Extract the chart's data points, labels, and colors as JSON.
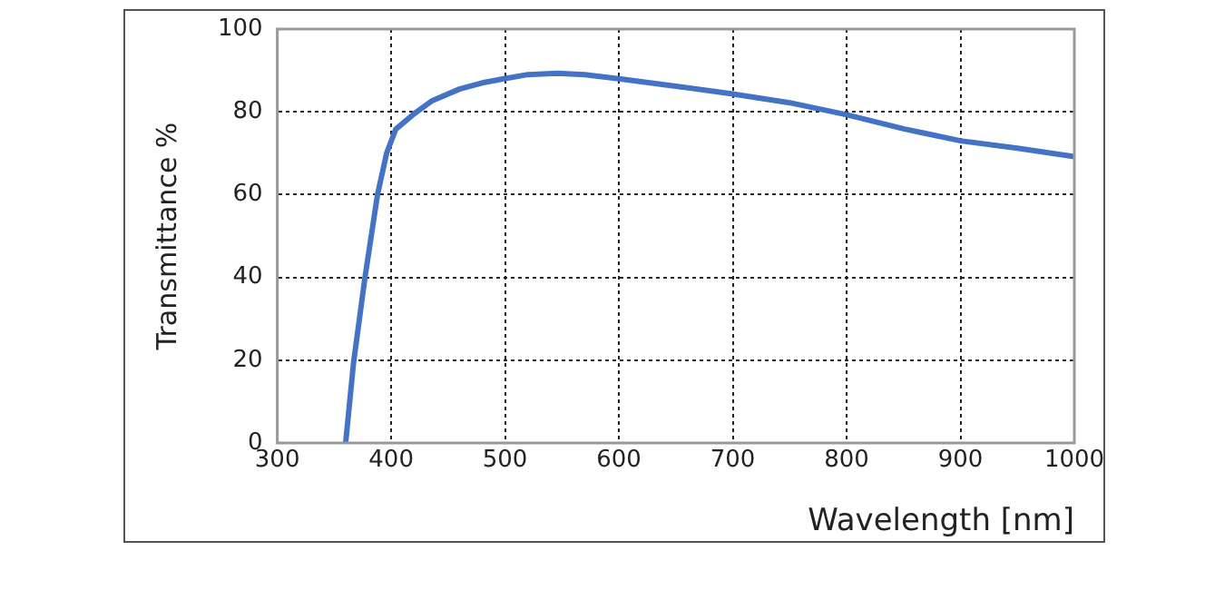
{
  "chart_data": {
    "type": "line",
    "xlabel": "Wavelength [nm]",
    "ylabel": "Transmittance %",
    "x": [
      360,
      367,
      377,
      388,
      396,
      404,
      420,
      436,
      460,
      480,
      499,
      520,
      546,
      570,
      600,
      650,
      700,
      750,
      800,
      850,
      900,
      950,
      1000
    ],
    "series": [
      {
        "color": "#4472c4",
        "values": [
          0,
          19.5,
          40,
          60,
          70,
          75.8,
          79.5,
          82.7,
          85.5,
          87,
          88,
          89,
          89.3,
          89,
          88,
          86.2,
          84.3,
          82.2,
          79.3,
          75.9,
          73,
          71.2,
          69.2
        ]
      }
    ],
    "xlim": [
      300,
      1000
    ],
    "ylim": [
      0,
      100
    ],
    "xticks": [
      300,
      400,
      500,
      600,
      700,
      800,
      900,
      1000
    ],
    "yticks": [
      0,
      20,
      40,
      60,
      80,
      100
    ],
    "grid": true,
    "legend": false,
    "marker": "none",
    "line_style": "solid"
  }
}
